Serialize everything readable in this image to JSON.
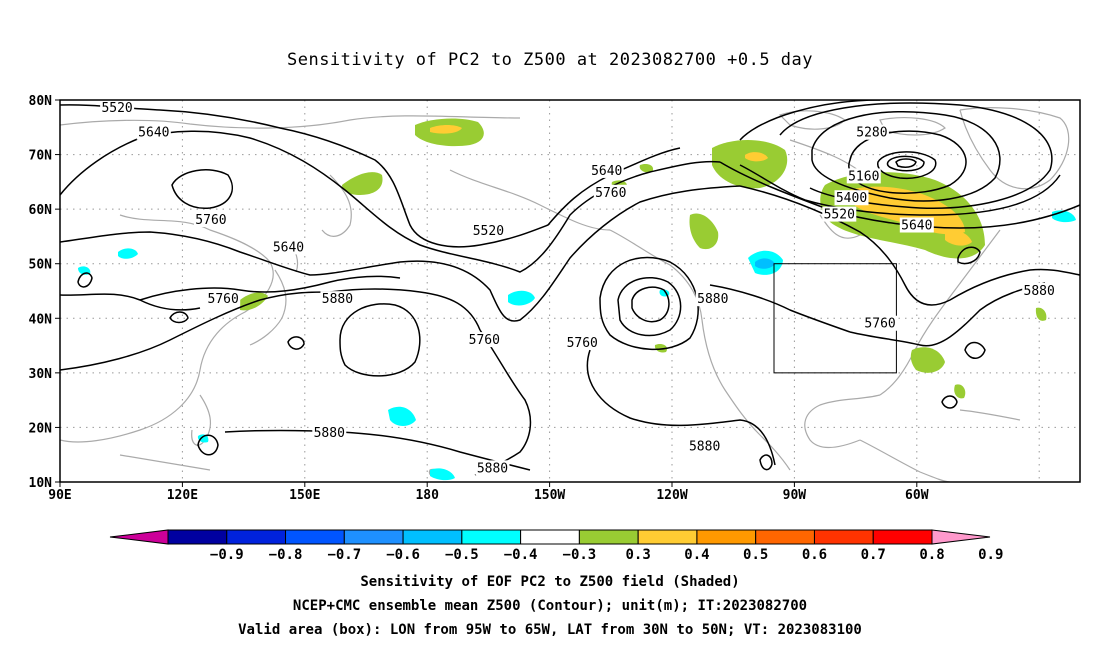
{
  "title": "Sensitivity of PC2 to Z500 at 2023082700 +0.5 day",
  "map": {
    "lat_labels": [
      "80N",
      "70N",
      "60N",
      "50N",
      "40N",
      "30N",
      "20N",
      "10N"
    ],
    "lon_labels": [
      "90E",
      "120E",
      "150E",
      "180",
      "150W",
      "120W",
      "90W",
      "60W"
    ],
    "contour_labels": [
      {
        "text": "5520",
        "lon": 104,
        "lat": 78.5
      },
      {
        "text": "5640",
        "lon": 113,
        "lat": 74
      },
      {
        "text": "5760",
        "lon": 127,
        "lat": 58
      },
      {
        "text": "5640",
        "lon": 146,
        "lat": 53
      },
      {
        "text": "5760",
        "lon": 130,
        "lat": 43.5
      },
      {
        "text": "5880",
        "lon": 158,
        "lat": 43.5
      },
      {
        "text": "5520",
        "lon": 195,
        "lat": 56
      },
      {
        "text": "5760",
        "lon": 194,
        "lat": 36
      },
      {
        "text": "5640",
        "lon": 224,
        "lat": 67
      },
      {
        "text": "5760",
        "lon": 225,
        "lat": 63
      },
      {
        "text": "5760",
        "lon": 218,
        "lat": 35.5
      },
      {
        "text": "5880",
        "lon": 250,
        "lat": 43.5
      },
      {
        "text": "5280",
        "lon": 289,
        "lat": 74
      },
      {
        "text": "5160",
        "lon": 287,
        "lat": 66
      },
      {
        "text": "5400",
        "lon": 284,
        "lat": 62
      },
      {
        "text": "5520",
        "lon": 281,
        "lat": 59
      },
      {
        "text": "5640",
        "lon": 300,
        "lat": 57
      },
      {
        "text": "5760",
        "lon": 291,
        "lat": 39
      },
      {
        "text": "5880",
        "lon": 330,
        "lat": 45
      },
      {
        "text": "5880",
        "lon": 156,
        "lat": 19
      },
      {
        "text": "5880",
        "lon": 196,
        "lat": 12.5
      },
      {
        "text": "5880",
        "lon": 248,
        "lat": 16.5
      }
    ],
    "valid_box": {
      "lon_min": 265,
      "lon_max": 295,
      "lat_min": 30,
      "lat_max": 50
    }
  },
  "colorbar": {
    "labels": [
      "−0.9",
      "−0.8",
      "−0.7",
      "−0.6",
      "−0.5",
      "−0.4",
      "−0.3",
      "0.3",
      "0.4",
      "0.5",
      "0.6",
      "0.7",
      "0.8",
      "0.9"
    ],
    "colors": [
      "#cc0099",
      "#0000a0",
      "#0022dd",
      "#0055ff",
      "#1e90ff",
      "#00bfff",
      "#00ffff",
      "#ffffff",
      "#99cc33",
      "#ffcc33",
      "#ff9900",
      "#ff6600",
      "#ff3300",
      "#ff0000",
      "#ff99cc"
    ]
  },
  "captions": [
    "Sensitivity of EOF PC2 to Z500 field (Shaded)",
    "NCEP+CMC ensemble mean Z500 (Contour); unit(m); IT:2023082700",
    "Valid area (box): LON from 95W to 65W, LAT from 30N to 50N; VT: 2023083100"
  ],
  "colors": {
    "coast": "#aaaaaa",
    "grid": "#999999",
    "contour": "#000000",
    "positive_shade": "#99cc33",
    "orange_shade": "#ffcc33",
    "negative_shade": "#00ffff"
  }
}
